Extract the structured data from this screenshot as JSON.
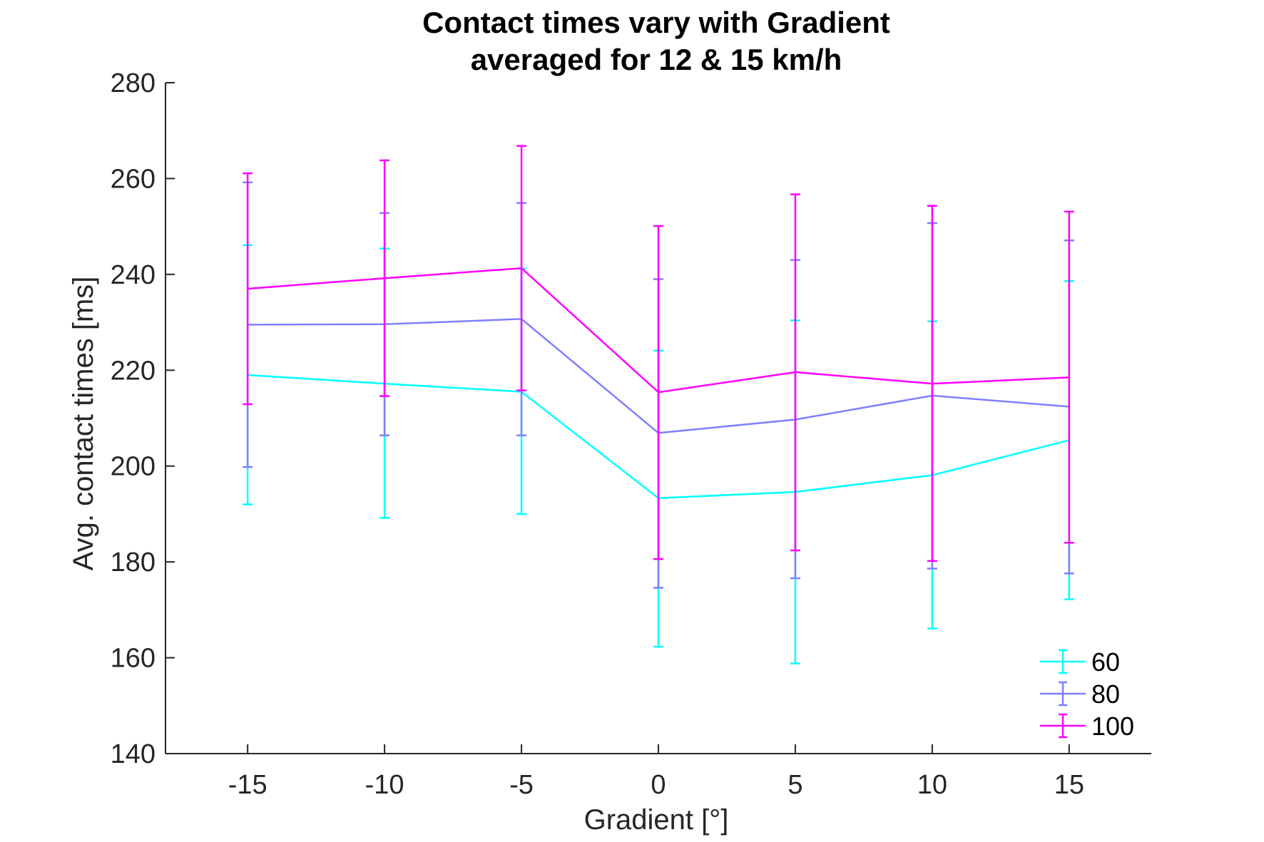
{
  "chart_data": {
    "type": "line",
    "title": [
      "Contact times vary with Gradient",
      "averaged for 12 & 15 km/h"
    ],
    "xlabel": "Gradient [°]",
    "ylabel": "Avg. contact times [ms]",
    "x": [
      -15,
      -10,
      -5,
      0,
      5,
      10,
      15
    ],
    "x_tick_labels": [
      "-15",
      "-10",
      "-5",
      "0",
      "5",
      "10",
      "15"
    ],
    "xlim": [
      -18,
      18
    ],
    "ylim": [
      140,
      280
    ],
    "y_ticks": [
      140,
      160,
      180,
      200,
      220,
      240,
      260,
      280
    ],
    "y_tick_labels": [
      "140",
      "160",
      "180",
      "200",
      "220",
      "240",
      "260",
      "280"
    ],
    "grid": false,
    "legend_position": "bottom-right",
    "series": [
      {
        "name": "60",
        "color": "#00ffff",
        "values": [
          219.0,
          217.2,
          215.5,
          193.3,
          194.6,
          198.1,
          205.4
        ],
        "lower": [
          192.0,
          189.2,
          190.0,
          162.3,
          158.8,
          166.1,
          172.2
        ],
        "upper": [
          246.1,
          245.4,
          241.2,
          224.1,
          230.4,
          230.2,
          238.6
        ]
      },
      {
        "name": "80",
        "color": "#7f7fff",
        "values": [
          229.5,
          229.6,
          230.7,
          206.9,
          209.7,
          214.7,
          212.4
        ],
        "lower": [
          199.8,
          206.4,
          206.4,
          174.6,
          176.6,
          178.6,
          177.6
        ],
        "upper": [
          259.2,
          252.8,
          254.9,
          239.0,
          243.0,
          250.7,
          247.1
        ]
      },
      {
        "name": "100",
        "color": "#ff00ff",
        "values": [
          237.0,
          239.2,
          241.3,
          215.4,
          219.6,
          217.2,
          218.5
        ],
        "lower": [
          212.9,
          214.6,
          215.8,
          180.6,
          182.4,
          180.2,
          184.0
        ],
        "upper": [
          261.1,
          263.8,
          266.8,
          250.1,
          256.7,
          254.3,
          253.1
        ]
      }
    ]
  }
}
